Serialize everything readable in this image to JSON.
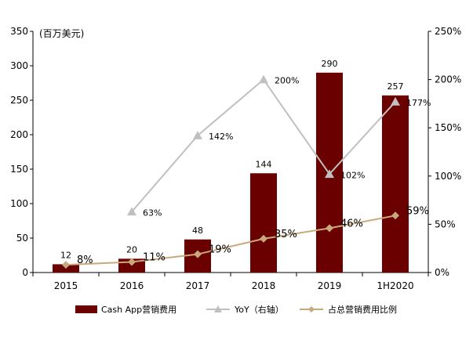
{
  "chart_data": {
    "type": "bar",
    "unit_label": "(百万美元)",
    "categories": [
      "2015",
      "2016",
      "2017",
      "2018",
      "2019",
      "1H2020"
    ],
    "series": [
      {
        "name": "Cash App营销费用",
        "kind": "bar",
        "axis": "left",
        "color": "#6b0000",
        "values": [
          12,
          20,
          48,
          144,
          290,
          257
        ],
        "labels": [
          "12",
          "20",
          "48",
          "144",
          "290",
          "257"
        ]
      },
      {
        "name": "YoY（右轴）",
        "kind": "line",
        "axis": "right",
        "color": "#c0c0c0",
        "values": [
          null,
          63,
          142,
          200,
          102,
          177
        ],
        "labels": [
          "",
          "63%",
          "142%",
          "200%",
          "102%",
          "177%"
        ]
      },
      {
        "name": "占总营销费用比例",
        "kind": "line",
        "axis": "right",
        "color": "#c8a97c",
        "values": [
          8,
          11,
          19,
          35,
          46,
          59
        ],
        "labels": [
          "8%",
          "11%",
          "19%",
          "35%",
          "46%",
          "59%"
        ]
      }
    ],
    "y_left": {
      "ylim": [
        0,
        350
      ],
      "ticks": [
        "0",
        "50",
        "100",
        "150",
        "200",
        "250",
        "300",
        "350"
      ]
    },
    "y_right": {
      "ylim": [
        0,
        250
      ],
      "ticks": [
        "0%",
        "50%",
        "100%",
        "150%",
        "200%",
        "250%"
      ]
    },
    "grid": false,
    "legend_position": "bottom"
  }
}
